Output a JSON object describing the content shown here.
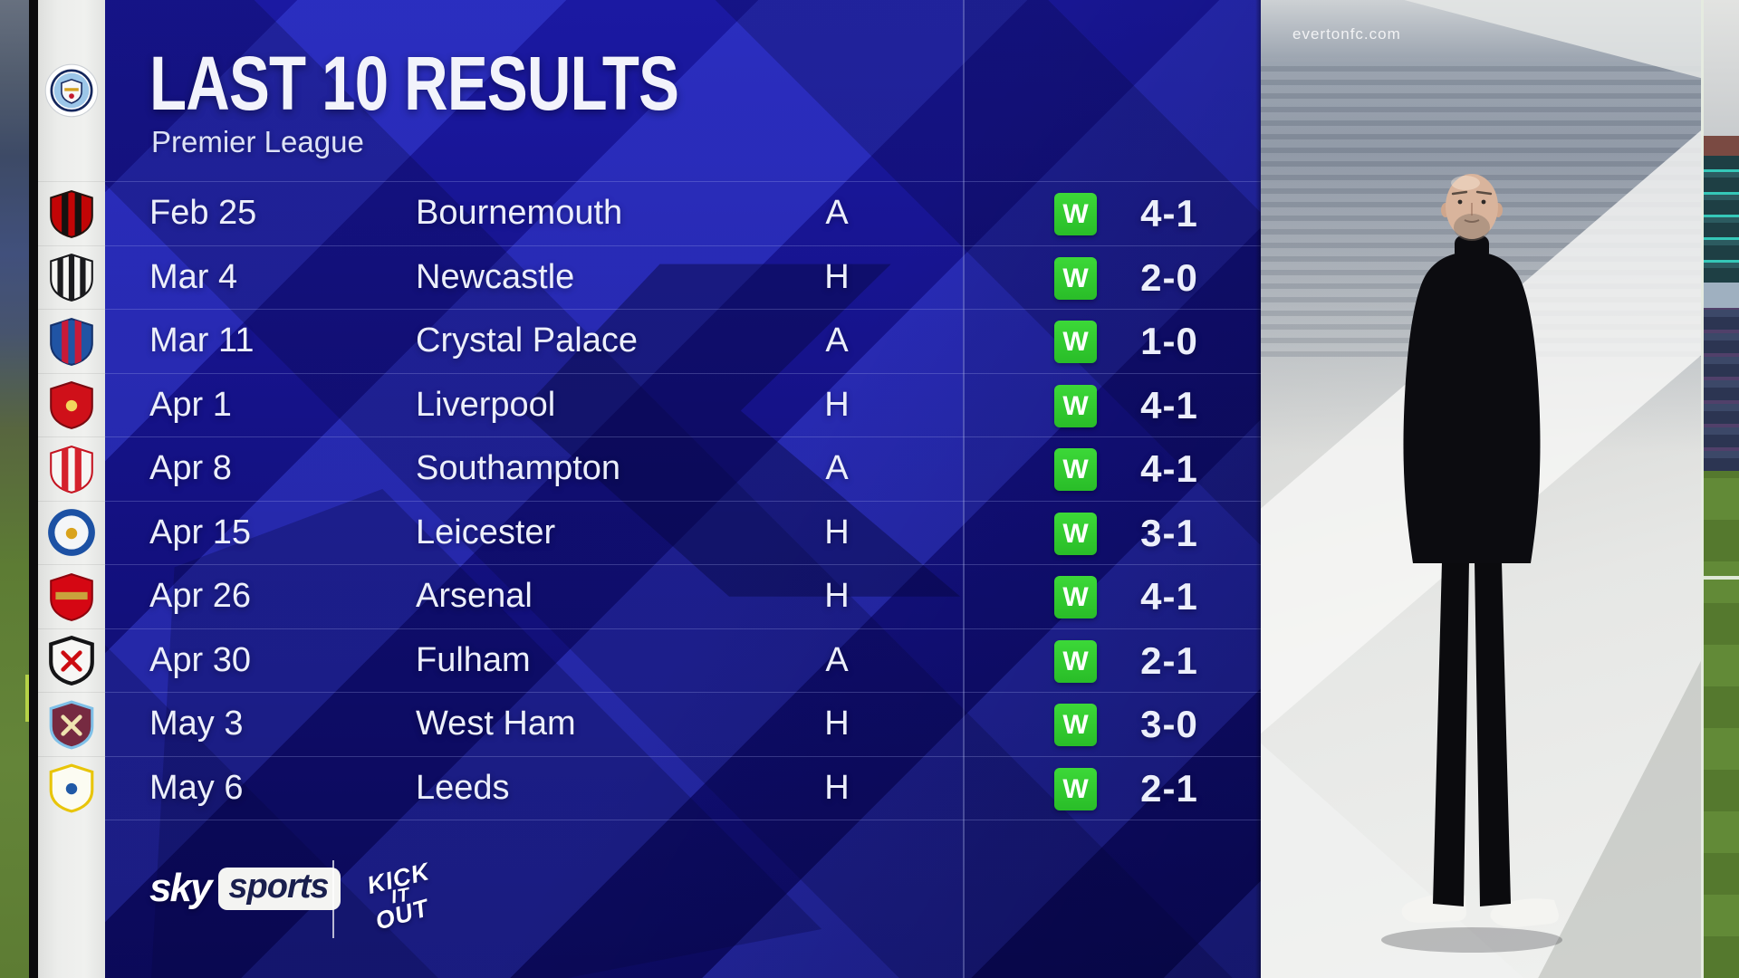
{
  "header": {
    "title": "LAST 10 RESULTS",
    "subtitle": "Premier League"
  },
  "team": {
    "name": "Manchester City",
    "badge": "man-city"
  },
  "results": [
    {
      "date": "Feb 25",
      "opponent": "Bournemouth",
      "venue": "A",
      "result": "W",
      "score": "4-1",
      "badge": "bournemouth"
    },
    {
      "date": "Mar 4",
      "opponent": "Newcastle",
      "venue": "H",
      "result": "W",
      "score": "2-0",
      "badge": "newcastle"
    },
    {
      "date": "Mar 11",
      "opponent": "Crystal Palace",
      "venue": "A",
      "result": "W",
      "score": "1-0",
      "badge": "crystal-palace"
    },
    {
      "date": "Apr 1",
      "opponent": "Liverpool",
      "venue": "H",
      "result": "W",
      "score": "4-1",
      "badge": "liverpool"
    },
    {
      "date": "Apr 8",
      "opponent": "Southampton",
      "venue": "A",
      "result": "W",
      "score": "4-1",
      "badge": "southampton"
    },
    {
      "date": "Apr 15",
      "opponent": "Leicester",
      "venue": "H",
      "result": "W",
      "score": "3-1",
      "badge": "leicester"
    },
    {
      "date": "Apr 26",
      "opponent": "Arsenal",
      "venue": "H",
      "result": "W",
      "score": "4-1",
      "badge": "arsenal"
    },
    {
      "date": "Apr 30",
      "opponent": "Fulham",
      "venue": "A",
      "result": "W",
      "score": "2-1",
      "badge": "fulham"
    },
    {
      "date": "May 3",
      "opponent": "West Ham",
      "venue": "H",
      "result": "W",
      "score": "3-0",
      "badge": "west-ham"
    },
    {
      "date": "May 6",
      "opponent": "Leeds",
      "venue": "H",
      "result": "W",
      "score": "2-1",
      "badge": "leeds"
    }
  ],
  "footer": {
    "sky": {
      "word1": "sky",
      "word2": "sports"
    },
    "kick_it_out_lines": {
      "0": "KICK",
      "1": "IT",
      "2": "OUT"
    }
  },
  "photo": {
    "watermark": "evertonfc.com"
  },
  "colors": {
    "win_green": "#2fca2d",
    "panel_navy": "#14117e",
    "panel_bright_blue": "#2a30c5",
    "strip_white": "#ecedeb",
    "text_white": "#ecEFfb"
  },
  "badges": {
    "man-city": {
      "shape": "mc",
      "size": 62
    },
    "bournemouth": {
      "shape": "shield",
      "size": 58,
      "bg": "#c20506",
      "ring": "#26130f",
      "stripes": {
        "color": "#151210",
        "count": 2,
        "width": 7
      }
    },
    "newcastle": {
      "shape": "shield",
      "size": 58,
      "bg": "#f5f5f3",
      "ring": "#17171a",
      "stripes": {
        "color": "#1b1b1e",
        "count": 3,
        "width": 6
      }
    },
    "crystal-palace": {
      "shape": "shield",
      "size": 58,
      "bg": "#2054a4",
      "ring": "#14316b",
      "stripes": {
        "color": "#c81a38",
        "count": 2,
        "width": 7
      }
    },
    "liverpool": {
      "shape": "shield",
      "size": 58,
      "bg": "#cf1019",
      "ring": "#7a0a10",
      "accent": {
        "type": "dot",
        "color": "#f2d65c"
      }
    },
    "southampton": {
      "shape": "shield",
      "size": 58,
      "bg": "#f6f6f4",
      "ring": "#c41320",
      "stripes": {
        "color": "#d5212c",
        "count": 2,
        "width": 7
      }
    },
    "leicester": {
      "shape": "circle",
      "size": 58,
      "bg": "#f4f6f8",
      "ring": "#1c51a4",
      "innerR": 18,
      "accent": {
        "type": "dot",
        "color": "#d9a31d"
      }
    },
    "arsenal": {
      "shape": "shield",
      "size": 58,
      "bg": "#d50713",
      "ring": "#8e050e",
      "accent": {
        "type": "band",
        "color": "#c9a23c"
      }
    },
    "fulham": {
      "shape": "shield",
      "size": 58,
      "bg": "#f7f7f5",
      "ring": "#141416",
      "ringWidth": 4,
      "accent": {
        "type": "cross",
        "color": "#cc0b10"
      }
    },
    "west-ham": {
      "shape": "shield",
      "size": 58,
      "bg": "#762a41",
      "ring": "#7fc0e8",
      "ringWidth": 3,
      "accent": {
        "type": "cross",
        "color": "#efe3b0"
      }
    },
    "leeds": {
      "shape": "shield",
      "size": 58,
      "bg": "#fcfcf2",
      "ring": "#e8c50a",
      "ringWidth": 3,
      "accent": {
        "type": "dot",
        "color": "#2059a6"
      }
    }
  }
}
